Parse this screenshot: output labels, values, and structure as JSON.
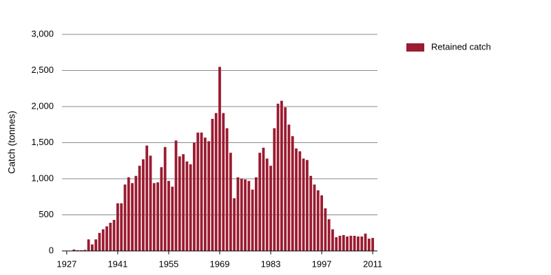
{
  "chart_data": {
    "type": "bar",
    "y_label": "Catch (tonnes)",
    "legend": "top-right",
    "grid": true,
    "series": [
      {
        "name": "Retained catch",
        "color": "#9b1b30",
        "values": [
          0,
          5,
          20,
          10,
          10,
          15,
          160,
          90,
          160,
          250,
          300,
          340,
          390,
          430,
          660,
          660,
          920,
          1020,
          940,
          1040,
          1180,
          1270,
          1460,
          1320,
          940,
          950,
          1160,
          1440,
          970,
          890,
          1530,
          1310,
          1340,
          1240,
          1200,
          1500,
          1640,
          1640,
          1570,
          1520,
          1830,
          1910,
          2550,
          1910,
          1700,
          1360,
          730,
          1020,
          1000,
          990,
          970,
          850,
          1020,
          1360,
          1430,
          1280,
          1180,
          1700,
          2040,
          2080,
          1990,
          1750,
          1590,
          1420,
          1380,
          1280,
          1260,
          1040,
          920,
          840,
          770,
          590,
          440,
          300,
          190,
          210,
          220,
          200,
          210,
          210,
          200,
          200,
          240,
          170,
          180
        ]
      }
    ],
    "x": [
      1927,
      1928,
      1929,
      1930,
      1931,
      1932,
      1933,
      1934,
      1935,
      1936,
      1937,
      1938,
      1939,
      1940,
      1941,
      1942,
      1943,
      1944,
      1945,
      1946,
      1947,
      1948,
      1949,
      1950,
      1951,
      1952,
      1953,
      1954,
      1955,
      1956,
      1957,
      1958,
      1959,
      1960,
      1961,
      1962,
      1963,
      1964,
      1965,
      1966,
      1967,
      1968,
      1969,
      1970,
      1971,
      1972,
      1973,
      1974,
      1975,
      1976,
      1977,
      1978,
      1979,
      1980,
      1981,
      1982,
      1983,
      1984,
      1985,
      1986,
      1987,
      1988,
      1989,
      1990,
      1991,
      1992,
      1993,
      1994,
      1995,
      1996,
      1997,
      1998,
      1999,
      2000,
      2001,
      2002,
      2003,
      2004,
      2005,
      2006,
      2007,
      2008,
      2009,
      2010,
      2011
    ],
    "xlim": [
      1925.7,
      2012.3
    ],
    "xticks": [
      1927,
      1941,
      1955,
      1969,
      1983,
      1997,
      2011
    ],
    "ylim": [
      0,
      3000
    ],
    "yticks": [
      0,
      500,
      {
        "value": 1000,
        "label": "1,000"
      },
      {
        "value": 1500,
        "label": "1,500"
      },
      {
        "value": 2000,
        "label": "2,000"
      },
      {
        "value": 2500,
        "label": "2,500"
      },
      {
        "value": 3000,
        "label": "3,000"
      }
    ]
  }
}
